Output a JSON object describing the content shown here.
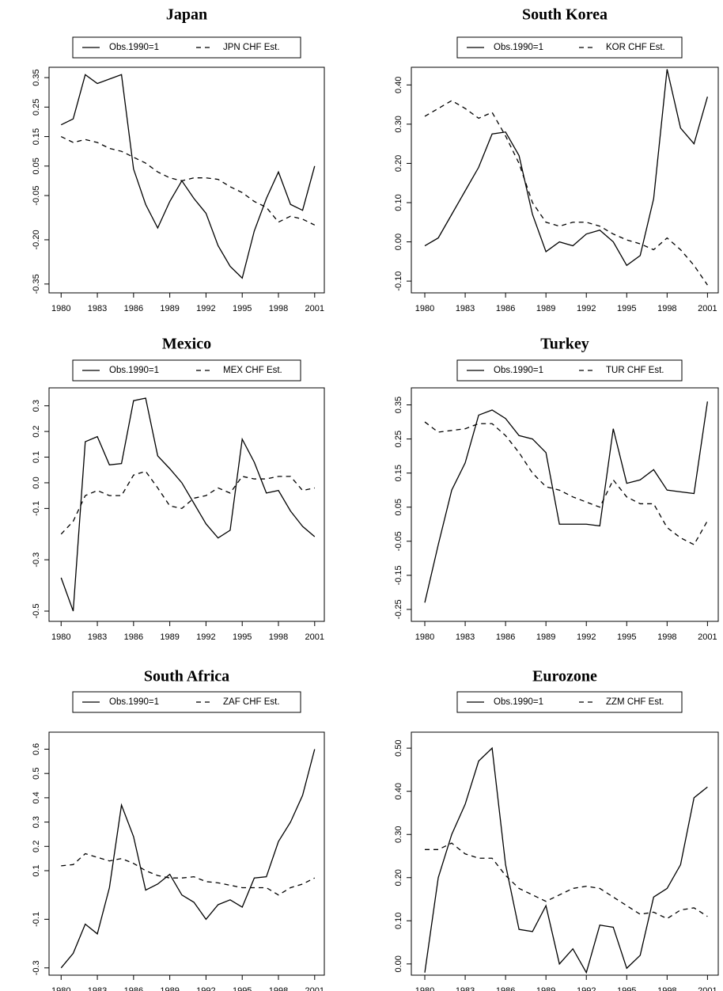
{
  "chart_data": [
    {
      "type": "line",
      "title": "Japan",
      "x": [
        1980,
        1981,
        1982,
        1983,
        1984,
        1985,
        1986,
        1987,
        1988,
        1989,
        1990,
        1991,
        1992,
        1993,
        1994,
        1995,
        1996,
        1997,
        1998,
        1999,
        2000,
        2001
      ],
      "series": [
        {
          "name": "Obs.1990=1",
          "color": "#000000",
          "line_style": "solid",
          "values": [
            0.19,
            0.21,
            0.36,
            0.33,
            0.345,
            0.36,
            0.04,
            -0.08,
            -0.16,
            -0.07,
            0.0,
            -0.06,
            -0.11,
            -0.22,
            -0.29,
            -0.33,
            -0.17,
            -0.06,
            0.03,
            -0.08,
            -0.1,
            0.05
          ]
        },
        {
          "name": "JPN CHF Est.",
          "color": "#000000",
          "line_style": "dashed",
          "values": [
            0.15,
            0.13,
            0.14,
            0.13,
            0.11,
            0.1,
            0.08,
            0.06,
            0.03,
            0.01,
            0.0,
            0.01,
            0.01,
            0.005,
            -0.02,
            -0.04,
            -0.07,
            -0.09,
            -0.14,
            -0.12,
            -0.13,
            -0.15
          ]
        }
      ],
      "xlim": [
        1979,
        2001.8
      ],
      "xticks": [
        1980,
        1983,
        1986,
        1989,
        1992,
        1995,
        1998,
        2001
      ],
      "ylim": [
        -0.38,
        0.385
      ],
      "yticks": [
        -0.35,
        {
          "value": -0.2,
          "label": "-0.20"
        },
        -0.05,
        0.05,
        0.15,
        0.25,
        0.35
      ]
    },
    {
      "type": "line",
      "title": "South Korea",
      "x": [
        1980,
        1981,
        1982,
        1983,
        1984,
        1985,
        1986,
        1987,
        1988,
        1989,
        1990,
        1991,
        1992,
        1993,
        1994,
        1995,
        1996,
        1997,
        1998,
        1999,
        2000,
        2001
      ],
      "series": [
        {
          "name": "Obs.1990=1",
          "color": "#000000",
          "line_style": "solid",
          "values": [
            -0.01,
            0.01,
            0.07,
            0.13,
            0.19,
            0.275,
            0.28,
            0.22,
            0.07,
            -0.025,
            0.0,
            -0.01,
            0.02,
            0.03,
            0.0,
            -0.06,
            -0.035,
            0.11,
            0.44,
            0.29,
            0.25,
            0.37
          ]
        },
        {
          "name": "KOR CHF Est.",
          "color": "#000000",
          "line_style": "dashed",
          "values": [
            0.32,
            0.34,
            0.36,
            0.34,
            0.315,
            0.33,
            0.27,
            0.2,
            0.1,
            0.05,
            0.04,
            0.05,
            0.05,
            0.04,
            0.02,
            0.005,
            -0.005,
            -0.02,
            0.01,
            -0.02,
            -0.06,
            -0.11
          ]
        }
      ],
      "xlim": [
        1979,
        2001.8
      ],
      "xticks": [
        1980,
        1983,
        1986,
        1989,
        1992,
        1995,
        1998,
        2001
      ],
      "ylim": [
        -0.13,
        0.445
      ],
      "yticks": [
        {
          "value": -0.1,
          "label": "-0.10"
        },
        {
          "value": 0,
          "label": "0.00"
        },
        {
          "value": 0.1,
          "label": "0.10"
        },
        {
          "value": 0.2,
          "label": "0.20"
        },
        {
          "value": 0.3,
          "label": "0.30"
        },
        {
          "value": 0.4,
          "label": "0.40"
        }
      ]
    },
    {
      "type": "line",
      "title": "Mexico",
      "x": [
        1980,
        1981,
        1982,
        1983,
        1984,
        1985,
        1986,
        1987,
        1988,
        1989,
        1990,
        1991,
        1992,
        1993,
        1994,
        1995,
        1996,
        1997,
        1998,
        1999,
        2000,
        2001
      ],
      "series": [
        {
          "name": "Obs.1990=1",
          "color": "#000000",
          "line_style": "solid",
          "values": [
            -0.37,
            -0.5,
            0.16,
            0.18,
            0.07,
            0.075,
            0.32,
            0.33,
            0.105,
            0.055,
            0.0,
            -0.08,
            -0.16,
            -0.215,
            -0.185,
            0.17,
            0.08,
            -0.04,
            -0.03,
            -0.11,
            -0.17,
            -0.21
          ]
        },
        {
          "name": "MEX CHF Est.",
          "color": "#000000",
          "line_style": "dashed",
          "values": [
            -0.2,
            -0.15,
            -0.05,
            -0.03,
            -0.05,
            -0.05,
            0.03,
            0.045,
            -0.02,
            -0.09,
            -0.1,
            -0.06,
            -0.05,
            -0.02,
            -0.04,
            0.025,
            0.015,
            0.015,
            0.025,
            0.025,
            -0.03,
            -0.02
          ]
        }
      ],
      "xlim": [
        1979,
        2001.8
      ],
      "xticks": [
        1980,
        1983,
        1986,
        1989,
        1992,
        1995,
        1998,
        2001
      ],
      "ylim": [
        -0.54,
        0.37
      ],
      "yticks": [
        -0.5,
        -0.3,
        -0.1,
        {
          "value": 0,
          "label": "0.0"
        },
        0.1,
        0.2,
        0.3
      ]
    },
    {
      "type": "line",
      "title": "Turkey",
      "x": [
        1980,
        1981,
        1982,
        1983,
        1984,
        1985,
        1986,
        1987,
        1988,
        1989,
        1990,
        1991,
        1992,
        1993,
        1994,
        1995,
        1996,
        1997,
        1998,
        1999,
        2000,
        2001
      ],
      "series": [
        {
          "name": "Obs.1990=1",
          "color": "#000000",
          "line_style": "solid",
          "values": [
            -0.23,
            -0.06,
            0.1,
            0.18,
            0.32,
            0.335,
            0.31,
            0.26,
            0.25,
            0.21,
            0.0,
            0.0,
            0.0,
            -0.005,
            0.28,
            0.12,
            0.13,
            0.16,
            0.1,
            0.095,
            0.09,
            0.36
          ]
        },
        {
          "name": "TUR CHF Est.",
          "color": "#000000",
          "line_style": "dashed",
          "values": [
            0.3,
            0.27,
            0.275,
            0.28,
            0.295,
            0.295,
            0.26,
            0.21,
            0.15,
            0.11,
            0.1,
            0.08,
            0.065,
            0.05,
            0.13,
            0.08,
            0.06,
            0.06,
            -0.01,
            -0.04,
            -0.06,
            0.01
          ]
        }
      ],
      "xlim": [
        1979,
        2001.8
      ],
      "xticks": [
        1980,
        1983,
        1986,
        1989,
        1992,
        1995,
        1998,
        2001
      ],
      "ylim": [
        -0.285,
        0.4
      ],
      "yticks": [
        -0.25,
        -0.15,
        -0.05,
        0.05,
        0.15,
        0.25,
        0.35
      ]
    },
    {
      "type": "line",
      "title": "South Africa",
      "x": [
        1980,
        1981,
        1982,
        1983,
        1984,
        1985,
        1986,
        1987,
        1988,
        1989,
        1990,
        1991,
        1992,
        1993,
        1994,
        1995,
        1996,
        1997,
        1998,
        1999,
        2000,
        2001
      ],
      "series": [
        {
          "name": "Obs.1990=1",
          "color": "#000000",
          "line_style": "solid",
          "values": [
            -0.3,
            -0.24,
            -0.12,
            -0.16,
            0.03,
            0.37,
            0.24,
            0.02,
            0.045,
            0.085,
            0.0,
            -0.03,
            -0.1,
            -0.04,
            -0.02,
            -0.05,
            0.07,
            0.075,
            0.22,
            0.3,
            0.41,
            0.6
          ]
        },
        {
          "name": "ZAF CHF Est.",
          "color": "#000000",
          "line_style": "dashed",
          "values": [
            0.12,
            0.125,
            0.17,
            0.155,
            0.14,
            0.15,
            0.13,
            0.1,
            0.08,
            0.07,
            0.07,
            0.075,
            0.055,
            0.05,
            0.04,
            0.03,
            0.03,
            0.03,
            0.0,
            0.03,
            0.045,
            0.07
          ]
        }
      ],
      "xlim": [
        1979,
        2001.8
      ],
      "xticks": [
        1980,
        1983,
        1986,
        1989,
        1992,
        1995,
        1998,
        2001
      ],
      "ylim": [
        -0.33,
        0.67
      ],
      "yticks": [
        -0.3,
        -0.1,
        0.1,
        0.2,
        0.3,
        0.4,
        0.5,
        0.6
      ]
    },
    {
      "type": "line",
      "title": "Eurozone",
      "x": [
        1980,
        1981,
        1982,
        1983,
        1984,
        1985,
        1986,
        1987,
        1988,
        1989,
        1990,
        1991,
        1992,
        1993,
        1994,
        1995,
        1996,
        1997,
        1998,
        1999,
        2000,
        2001
      ],
      "series": [
        {
          "name": "Obs.1990=1",
          "color": "#000000",
          "line_style": "solid",
          "values": [
            -0.02,
            0.2,
            0.3,
            0.37,
            0.47,
            0.5,
            0.23,
            0.08,
            0.075,
            0.135,
            0.0,
            0.035,
            -0.02,
            0.09,
            0.085,
            -0.01,
            0.02,
            0.155,
            0.175,
            0.23,
            0.385,
            0.41
          ]
        },
        {
          "name": "ZZM CHF Est.",
          "color": "#000000",
          "line_style": "dashed",
          "values": [
            0.265,
            0.265,
            0.28,
            0.255,
            0.245,
            0.245,
            0.205,
            0.175,
            0.16,
            0.145,
            0.16,
            0.175,
            0.18,
            0.175,
            0.155,
            0.135,
            0.115,
            0.12,
            0.105,
            0.125,
            0.13,
            0.11
          ]
        }
      ],
      "xlim": [
        1979,
        2001.8
      ],
      "xticks": [
        1980,
        1983,
        1986,
        1989,
        1992,
        1995,
        1998,
        2001
      ],
      "ylim": [
        -0.026,
        0.537
      ],
      "yticks": [
        {
          "value": 0,
          "label": "0.00"
        },
        {
          "value": 0.1,
          "label": "0.10"
        },
        {
          "value": 0.2,
          "label": "0.20"
        },
        {
          "value": 0.3,
          "label": "0.30"
        },
        {
          "value": 0.4,
          "label": "0.40"
        },
        {
          "value": 0.5,
          "label": "0.50"
        }
      ]
    }
  ]
}
